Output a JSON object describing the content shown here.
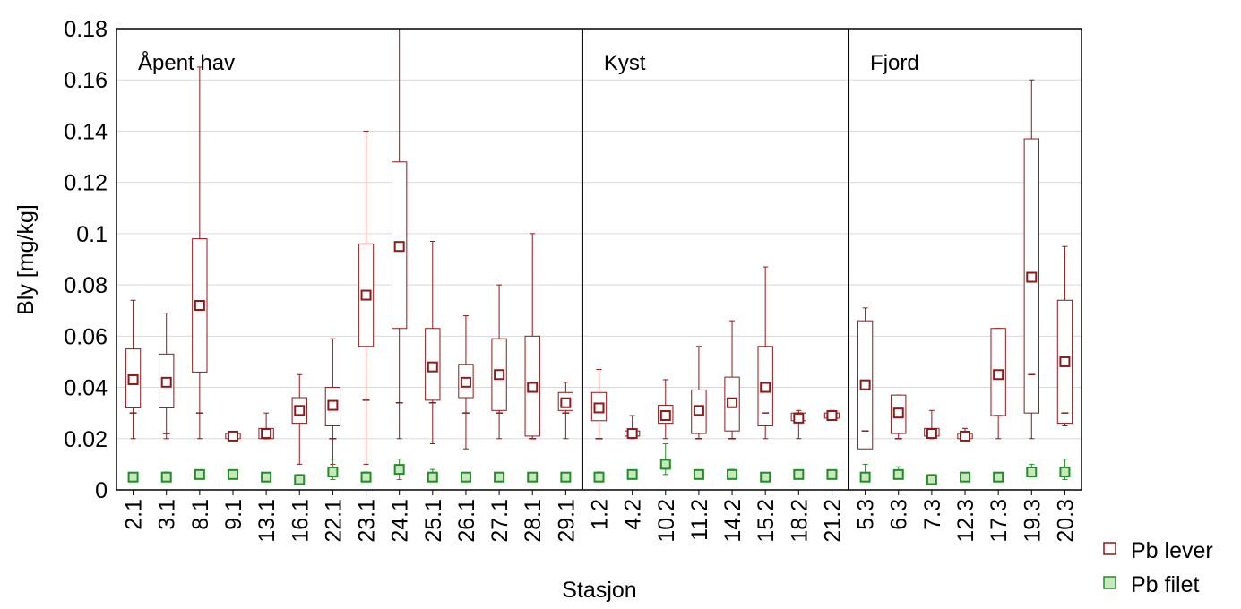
{
  "chart_data": {
    "type": "box",
    "ylabel": "Bly [mg/kg]",
    "xlabel": "Stasjon",
    "ylim": [
      0,
      0.18
    ],
    "yticks": [
      "0",
      "0.02",
      "0.04",
      "0.06",
      "0.08",
      "0.1",
      "0.12",
      "0.14",
      "0.16",
      "0.18"
    ],
    "grid": true,
    "categories": [
      "2.1",
      "3.1",
      "8.1",
      "9.1",
      "13.1",
      "16.1",
      "22.1",
      "23.1",
      "24.1",
      "25.1",
      "26.1",
      "27.1",
      "28.1",
      "29.1",
      "1.2",
      "4.2",
      "10.2",
      "11.2",
      "14.2",
      "15.2",
      "18.2",
      "21.2",
      "5.3",
      "6.3",
      "7.3",
      "12.3",
      "17.3",
      "19.3",
      "20.3"
    ],
    "regions": [
      {
        "label": "Åpent hav",
        "start": 0,
        "end": 13
      },
      {
        "label": "Kyst",
        "start": 14,
        "end": 21
      },
      {
        "label": "Fjord",
        "start": 22,
        "end": 28
      }
    ],
    "series": [
      {
        "name": "Pb lever",
        "color": "#8b1a1a",
        "mean": [
          0.043,
          0.042,
          0.072,
          0.021,
          0.022,
          0.031,
          0.033,
          0.076,
          0.095,
          0.048,
          0.042,
          0.045,
          0.04,
          0.034,
          0.032,
          0.022,
          0.029,
          0.031,
          0.034,
          0.04,
          0.028,
          0.029,
          0.041,
          0.03,
          0.022,
          0.021,
          0.045,
          0.083,
          0.05
        ],
        "box_low": [
          0.032,
          0.032,
          0.046,
          0.02,
          0.02,
          0.026,
          0.025,
          0.056,
          0.063,
          0.035,
          0.036,
          0.031,
          0.021,
          0.031,
          0.027,
          0.021,
          0.026,
          0.022,
          0.023,
          0.025,
          0.027,
          0.028,
          0.016,
          0.022,
          0.021,
          0.02,
          0.029,
          0.03,
          0.026
        ],
        "box_high": [
          0.055,
          0.053,
          0.098,
          0.022,
          0.024,
          0.036,
          0.04,
          0.096,
          0.128,
          0.063,
          0.049,
          0.059,
          0.06,
          0.038,
          0.038,
          0.023,
          0.033,
          0.039,
          0.044,
          0.056,
          0.03,
          0.03,
          0.066,
          0.037,
          0.024,
          0.022,
          0.063,
          0.137,
          0.074
        ],
        "whisker_low": [
          0.02,
          0.02,
          0.02,
          0.02,
          0.02,
          0.01,
          0.01,
          0.01,
          0.02,
          0.018,
          0.016,
          0.02,
          0.02,
          0.02,
          0.02,
          0.02,
          0.02,
          0.02,
          0.02,
          0.02,
          0.02,
          0.028,
          0.02,
          0.02,
          0.02,
          0.02,
          0.02,
          0.02,
          0.025
        ],
        "whisker_high": [
          0.074,
          0.069,
          0.165,
          0.022,
          0.03,
          0.045,
          0.059,
          0.14,
          0.18,
          0.097,
          0.068,
          0.08,
          0.1,
          0.042,
          0.047,
          0.029,
          0.043,
          0.056,
          0.066,
          0.087,
          0.031,
          0.031,
          0.071,
          0.037,
          0.031,
          0.024,
          0.063,
          0.16,
          0.095
        ],
        "median": [
          0.03,
          0.022,
          0.03,
          0.021,
          0.02,
          0.03,
          0.02,
          0.035,
          0.034,
          0.034,
          0.03,
          0.03,
          0.02,
          0.03,
          0.02,
          0.021,
          0.03,
          0.02,
          0.02,
          0.03,
          0.03,
          0.029,
          0.023,
          0.02,
          0.021,
          0.021,
          0.029,
          0.045,
          0.03
        ]
      },
      {
        "name": "Pb filet",
        "color": "#1f8f1f",
        "mean": [
          0.005,
          0.005,
          0.006,
          0.006,
          0.005,
          0.004,
          0.007,
          0.005,
          0.008,
          0.005,
          0.005,
          0.005,
          0.005,
          0.005,
          0.005,
          0.006,
          0.01,
          0.006,
          0.006,
          0.005,
          0.006,
          0.006,
          0.005,
          0.006,
          0.004,
          0.005,
          0.005,
          0.007,
          0.007
        ],
        "whisker_low": [
          0.005,
          0.004,
          0.005,
          0.005,
          0.005,
          0.004,
          0.004,
          0.005,
          0.004,
          0.004,
          0.005,
          0.005,
          0.005,
          0.005,
          0.005,
          0.005,
          0.006,
          0.005,
          0.005,
          0.005,
          0.005,
          0.005,
          0.004,
          0.005,
          0.004,
          0.005,
          0.005,
          0.005,
          0.004
        ],
        "whisker_high": [
          0.006,
          0.007,
          0.007,
          0.007,
          0.006,
          0.006,
          0.012,
          0.007,
          0.012,
          0.008,
          0.006,
          0.006,
          0.006,
          0.006,
          0.007,
          0.007,
          0.018,
          0.007,
          0.008,
          0.006,
          0.007,
          0.007,
          0.01,
          0.009,
          0.006,
          0.006,
          0.006,
          0.01,
          0.012
        ]
      }
    ],
    "legend": {
      "position": "bottom-right"
    }
  },
  "legend_entries": [
    {
      "label": "Pb lever",
      "color": "#8b1a1a",
      "fill": "#ffffff"
    },
    {
      "label": "Pb filet",
      "color": "#1f8f1f",
      "fill": "#c8e6c0"
    }
  ]
}
